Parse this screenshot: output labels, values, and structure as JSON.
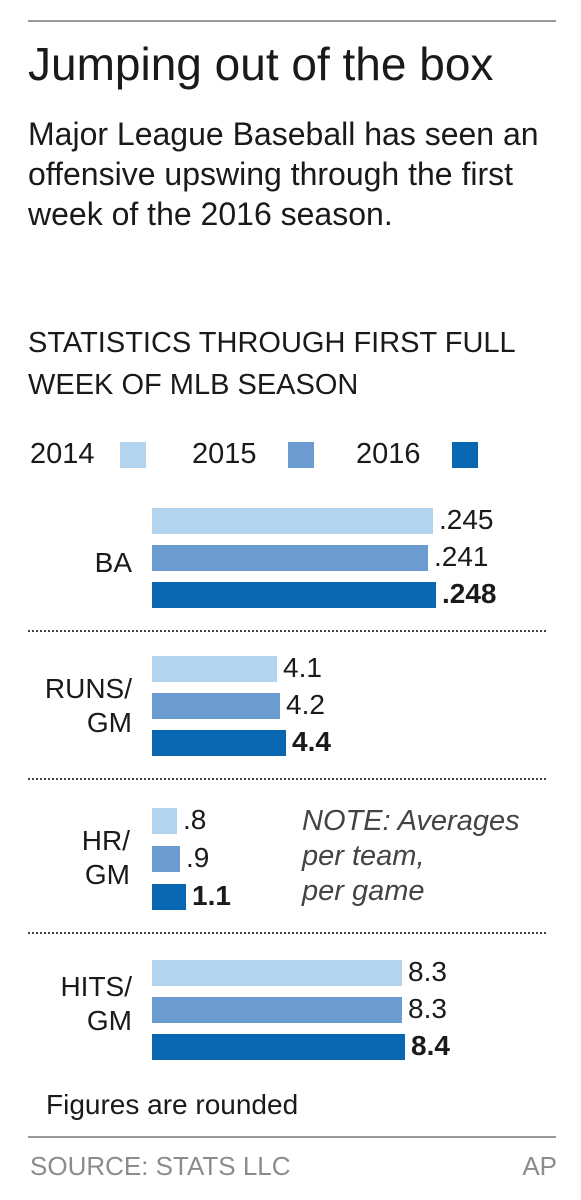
{
  "title": "Jumping out of the box",
  "subtitle": "Major League Baseball has seen an offensive upswing through the first week of the 2016 season.",
  "stats_heading": "STATISTICS THROUGH FIRST FULL WEEK OF MLB SEASON",
  "note": "NOTE: Averages\nper team,\nper game",
  "footnote": "Figures are rounded",
  "source": "SOURCE: STATS LLC",
  "credit": "AP",
  "colors": {
    "y2014": "#b3d4ef",
    "y2015": "#6b9bd0",
    "y2016": "#0a68b2"
  },
  "chart_data": {
    "type": "bar",
    "orientation": "horizontal",
    "legend": [
      "2014",
      "2015",
      "2016"
    ],
    "groups": [
      {
        "label_lines": [
          "BA"
        ],
        "values": [
          0.245,
          0.241,
          0.248
        ],
        "labels": [
          ".245",
          ".241",
          ".248"
        ]
      },
      {
        "label_lines": [
          "RUNS/",
          "GM"
        ],
        "values": [
          4.1,
          4.2,
          4.4
        ],
        "labels": [
          "4.1",
          "4.2",
          "4.4"
        ]
      },
      {
        "label_lines": [
          "HR/",
          "GM"
        ],
        "values": [
          0.8,
          0.9,
          1.1
        ],
        "labels": [
          ".8",
          ".9",
          "1.1"
        ]
      },
      {
        "label_lines": [
          "HITS/",
          "GM"
        ],
        "values": [
          8.3,
          8.3,
          8.4
        ],
        "labels": [
          "8.3",
          "8.3",
          "8.4"
        ]
      }
    ]
  }
}
